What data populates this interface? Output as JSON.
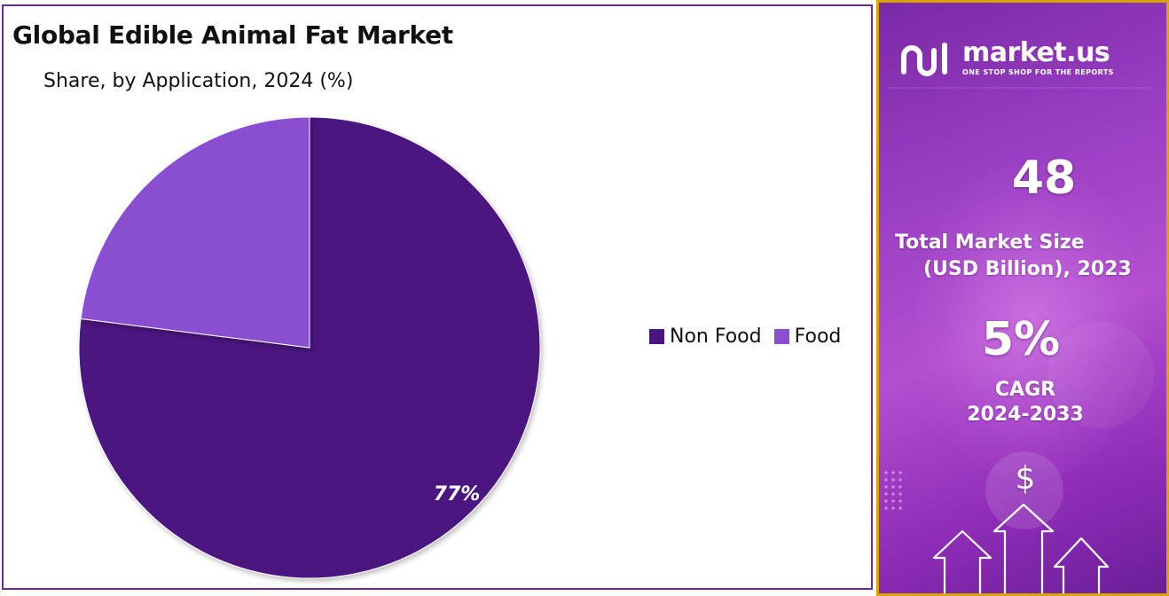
{
  "chart": {
    "title": "Global Edible Animal Fat Market",
    "subtitle": "Share, by Application, 2024 (%)"
  },
  "chart_data": {
    "type": "pie",
    "title": "Global Edible Animal Fat Market",
    "subtitle": "Share, by Application, 2024 (%)",
    "categories": [
      "Non Food",
      "Food"
    ],
    "values": [
      77,
      23
    ],
    "data_labels": [
      "77%",
      ""
    ],
    "colors": [
      "#4b1580",
      "#8a4fd1"
    ],
    "legend_position": "right"
  },
  "legend": {
    "items": [
      {
        "label": "Non Food",
        "color": "#4b1580"
      },
      {
        "label": "Food",
        "color": "#8a4fd1"
      }
    ]
  },
  "promo": {
    "brand": "market.us",
    "tagline": "ONE STOP SHOP FOR THE REPORTS",
    "market_size_value": "48",
    "market_size_label_line1": "Total Market Size",
    "market_size_label_line2": "(USD Billion), 2023",
    "cagr_value": "5%",
    "cagr_label_line1": "CAGR",
    "cagr_label_line2": "2024-2033",
    "dollar_symbol": "$",
    "border_color": "#d9a300"
  }
}
